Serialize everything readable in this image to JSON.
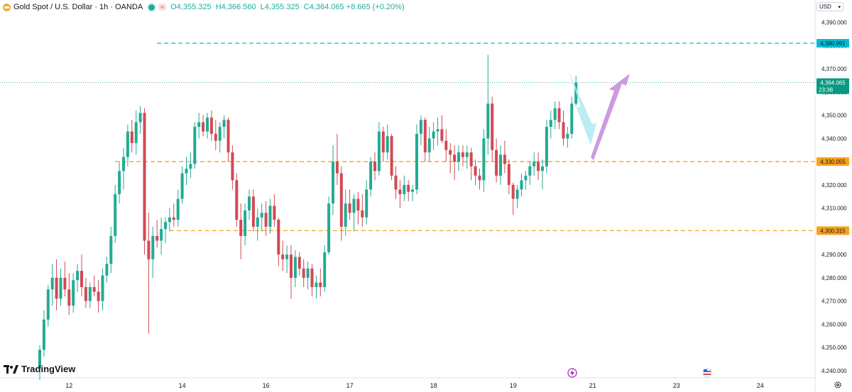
{
  "header": {
    "symbol": "Gold Spot / U.S. Dollar · 1h · OANDA",
    "open": "O4,355.325",
    "high": "H4,366.560",
    "low": "L4,355.325",
    "close": "C4,364.065",
    "change": "+8.665 (+0.20%)"
  },
  "currency_button": "USD",
  "brand": "TradingView",
  "colors": {
    "up": "#22ab94",
    "down": "#d14954",
    "level_orange": "#f7a21b",
    "level_cyan": "#00bcd4",
    "last_price": "#089981",
    "arrow_down": "#aeeaf2",
    "arrow_up": "#c98fdd"
  },
  "icons": {
    "lightning": "lightning-icon",
    "flag": "us-flag-icon",
    "settings": "gear-icon"
  },
  "chart_data": {
    "type": "candlestick",
    "symbol": "Gold Spot / U.S. Dollar",
    "interval": "1h",
    "ylim": [
      4236,
      4400
    ],
    "yticks": [
      4240,
      4250,
      4260,
      4270,
      4280,
      4290,
      4300,
      4310,
      4320,
      4330,
      4340,
      4350,
      4360,
      4370,
      4380,
      4390
    ],
    "ytick_labels": [
      "4,240.000",
      "4,250.000",
      "4,260.000",
      "4,270.000",
      "4,280.000",
      "4,290.000",
      "4,300.000",
      "4,310.000",
      "4,320.000",
      "4,330.000",
      "4,340.000",
      "4,350.000",
      "4,360.000",
      "4,370.000",
      "4,380.000",
      "4,390.000"
    ],
    "xticks": [
      {
        "label": "12",
        "bar": 7
      },
      {
        "label": "14",
        "bar": 34
      },
      {
        "label": "16",
        "bar": 54
      },
      {
        "label": "17",
        "bar": 74
      },
      {
        "label": "18",
        "bar": 94
      },
      {
        "label": "19",
        "bar": 113
      },
      {
        "label": "21",
        "bar": 132
      },
      {
        "label": "23",
        "bar": 152
      },
      {
        "label": "24",
        "bar": 172
      }
    ],
    "levels": [
      {
        "value": 4380.991,
        "label": "4,380.991",
        "color": "#00bcd4",
        "start_bar": 29
      },
      {
        "value": 4330.055,
        "label": "4,330.055",
        "color": "#f7a21b",
        "start_bar": 19
      },
      {
        "value": 4300.315,
        "label": "4,300.315",
        "color": "#f7a21b",
        "start_bar": 32
      }
    ],
    "last_price": {
      "value": 4364.065,
      "label": "4,364.065",
      "countdown": "23:38"
    },
    "bars": [
      [
        4241,
        4251,
        4236,
        4249
      ],
      [
        4249,
        4266,
        4246,
        4262
      ],
      [
        4262,
        4277,
        4259,
        4275
      ],
      [
        4275,
        4286,
        4268,
        4280
      ],
      [
        4280,
        4288,
        4266,
        4271
      ],
      [
        4271,
        4284,
        4268,
        4280
      ],
      [
        4280,
        4287,
        4272,
        4275
      ],
      [
        4275,
        4282,
        4264,
        4268
      ],
      [
        4268,
        4282,
        4265,
        4279
      ],
      [
        4279,
        4286,
        4274,
        4283
      ],
      [
        4283,
        4290,
        4272,
        4276
      ],
      [
        4276,
        4280,
        4267,
        4270
      ],
      [
        4270,
        4278,
        4267,
        4276
      ],
      [
        4276,
        4281,
        4272,
        4274
      ],
      [
        4274,
        4279,
        4265,
        4270
      ],
      [
        4270,
        4284,
        4266,
        4281
      ],
      [
        4281,
        4289,
        4278,
        4286
      ],
      [
        4286,
        4302,
        4282,
        4298
      ],
      [
        4298,
        4320,
        4295,
        4316
      ],
      [
        4316,
        4330,
        4312,
        4326
      ],
      [
        4326,
        4336,
        4318,
        4332
      ],
      [
        4332,
        4346,
        4328,
        4343
      ],
      [
        4343,
        4348,
        4334,
        4338
      ],
      [
        4338,
        4352,
        4333,
        4347
      ],
      [
        4347,
        4354,
        4342,
        4351
      ],
      [
        4351,
        4353,
        4290,
        4296
      ],
      [
        4296,
        4308,
        4256,
        4288
      ],
      [
        4288,
        4302,
        4280,
        4298
      ],
      [
        4298,
        4305,
        4293,
        4296
      ],
      [
        4296,
        4306,
        4290,
        4301
      ],
      [
        4301,
        4306,
        4295,
        4304
      ],
      [
        4304,
        4310,
        4300,
        4306
      ],
      [
        4306,
        4312,
        4302,
        4305
      ],
      [
        4305,
        4318,
        4302,
        4314
      ],
      [
        4314,
        4328,
        4312,
        4325
      ],
      [
        4325,
        4332,
        4320,
        4327
      ],
      [
        4327,
        4334,
        4323,
        4329
      ],
      [
        4329,
        4347,
        4327,
        4345
      ],
      [
        4345,
        4351,
        4340,
        4347
      ],
      [
        4347,
        4350,
        4341,
        4343
      ],
      [
        4343,
        4351,
        4340,
        4349
      ],
      [
        4349,
        4352,
        4339,
        4342
      ],
      [
        4342,
        4348,
        4335,
        4339
      ],
      [
        4339,
        4347,
        4334,
        4345
      ],
      [
        4345,
        4350,
        4340,
        4348
      ],
      [
        4348,
        4349,
        4330,
        4334
      ],
      [
        4334,
        4337,
        4318,
        4322
      ],
      [
        4322,
        4325,
        4302,
        4305
      ],
      [
        4305,
        4312,
        4288,
        4298
      ],
      [
        4298,
        4312,
        4294,
        4309
      ],
      [
        4309,
        4318,
        4305,
        4315
      ],
      [
        4315,
        4318,
        4300,
        4302
      ],
      [
        4302,
        4310,
        4296,
        4306
      ],
      [
        4306,
        4312,
        4300,
        4308
      ],
      [
        4308,
        4313,
        4298,
        4302
      ],
      [
        4302,
        4314,
        4299,
        4311
      ],
      [
        4311,
        4316,
        4302,
        4305
      ],
      [
        4305,
        4306,
        4285,
        4290
      ],
      [
        4290,
        4296,
        4283,
        4288
      ],
      [
        4288,
        4294,
        4282,
        4290
      ],
      [
        4290,
        4294,
        4271,
        4280
      ],
      [
        4280,
        4292,
        4276,
        4289
      ],
      [
        4289,
        4291,
        4281,
        4284
      ],
      [
        4284,
        4288,
        4276,
        4280
      ],
      [
        4280,
        4287,
        4275,
        4284
      ],
      [
        4284,
        4286,
        4272,
        4276
      ],
      [
        4276,
        4281,
        4271,
        4278
      ],
      [
        4278,
        4284,
        4272,
        4276
      ],
      [
        4276,
        4294,
        4274,
        4291
      ],
      [
        4291,
        4315,
        4290,
        4312
      ],
      [
        4312,
        4337,
        4307,
        4330
      ],
      [
        4330,
        4342,
        4320,
        4325
      ],
      [
        4325,
        4328,
        4296,
        4302
      ],
      [
        4302,
        4318,
        4298,
        4312
      ],
      [
        4312,
        4318,
        4305,
        4308
      ],
      [
        4308,
        4316,
        4300,
        4314
      ],
      [
        4314,
        4317,
        4303,
        4309
      ],
      [
        4309,
        4316,
        4302,
        4306
      ],
      [
        4306,
        4322,
        4303,
        4318
      ],
      [
        4318,
        4332,
        4315,
        4330
      ],
      [
        4330,
        4334,
        4322,
        4326
      ],
      [
        4326,
        4347,
        4324,
        4343
      ],
      [
        4343,
        4345,
        4330,
        4334
      ],
      [
        4334,
        4346,
        4331,
        4341
      ],
      [
        4341,
        4342,
        4322,
        4324
      ],
      [
        4324,
        4328,
        4314,
        4318
      ],
      [
        4318,
        4322,
        4310,
        4316
      ],
      [
        4316,
        4324,
        4313,
        4320
      ],
      [
        4320,
        4322,
        4313,
        4317
      ],
      [
        4317,
        4320,
        4313,
        4318
      ],
      [
        4318,
        4346,
        4316,
        4342
      ],
      [
        4342,
        4350,
        4337,
        4348
      ],
      [
        4348,
        4349,
        4330,
        4334
      ],
      [
        4334,
        4345,
        4330,
        4340
      ],
      [
        4340,
        4347,
        4335,
        4343
      ],
      [
        4343,
        4349,
        4337,
        4344
      ],
      [
        4344,
        4350,
        4338,
        4339
      ],
      [
        4339,
        4344,
        4330,
        4335
      ],
      [
        4335,
        4338,
        4325,
        4333
      ],
      [
        4333,
        4337,
        4322,
        4330
      ],
      [
        4330,
        4337,
        4326,
        4334
      ],
      [
        4334,
        4337,
        4328,
        4332
      ],
      [
        4332,
        4337,
        4327,
        4334
      ],
      [
        4334,
        4336,
        4322,
        4328
      ],
      [
        4328,
        4331,
        4320,
        4324
      ],
      [
        4324,
        4327,
        4318,
        4322
      ],
      [
        4322,
        4344,
        4317,
        4340
      ],
      [
        4340,
        4376,
        4333,
        4355
      ],
      [
        4355,
        4358,
        4330,
        4335
      ],
      [
        4335,
        4340,
        4321,
        4324
      ],
      [
        4324,
        4337,
        4320,
        4333
      ],
      [
        4333,
        4339,
        4325,
        4329
      ],
      [
        4329,
        4331,
        4316,
        4320
      ],
      [
        4320,
        4321,
        4307,
        4314
      ],
      [
        4314,
        4320,
        4310,
        4318
      ],
      [
        4318,
        4325,
        4315,
        4322
      ],
      [
        4322,
        4326,
        4318,
        4324
      ],
      [
        4324,
        4330,
        4320,
        4328
      ],
      [
        4328,
        4334,
        4324,
        4330
      ],
      [
        4330,
        4334,
        4322,
        4326
      ],
      [
        4326,
        4331,
        4318,
        4328
      ],
      [
        4328,
        4348,
        4325,
        4345
      ],
      [
        4345,
        4352,
        4340,
        4348
      ],
      [
        4348,
        4356,
        4344,
        4353
      ],
      [
        4353,
        4356,
        4344,
        4347
      ],
      [
        4347,
        4352,
        4337,
        4340
      ],
      [
        4340,
        4345,
        4336,
        4342
      ],
      [
        4342,
        4358,
        4340,
        4355
      ],
      [
        4355,
        4367,
        4354,
        4364
      ]
    ]
  }
}
